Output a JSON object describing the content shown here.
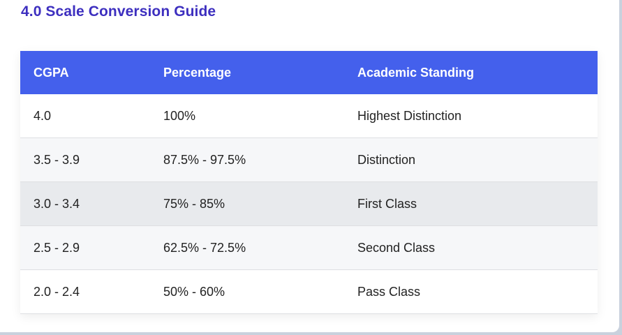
{
  "title": "4.0 Scale Conversion Guide",
  "colors": {
    "title": "#3d2fbf",
    "header_bg": "#4460ec",
    "row_alt": "#f6f7f9",
    "row_highlight": "#e8eaed",
    "page_bg": "#c9d1dd"
  },
  "table": {
    "headers": [
      "CGPA",
      "Percentage",
      "Academic Standing"
    ],
    "rows": [
      {
        "cgpa": "4.0",
        "percentage": "100%",
        "standing": "Highest Distinction"
      },
      {
        "cgpa": "3.5 - 3.9",
        "percentage": "87.5% - 97.5%",
        "standing": "Distinction"
      },
      {
        "cgpa": "3.0 - 3.4",
        "percentage": "75% - 85%",
        "standing": "First Class"
      },
      {
        "cgpa": "2.5 - 2.9",
        "percentage": "62.5% - 72.5%",
        "standing": "Second Class"
      },
      {
        "cgpa": "2.0 - 2.4",
        "percentage": "50% - 60%",
        "standing": "Pass Class"
      }
    ]
  }
}
